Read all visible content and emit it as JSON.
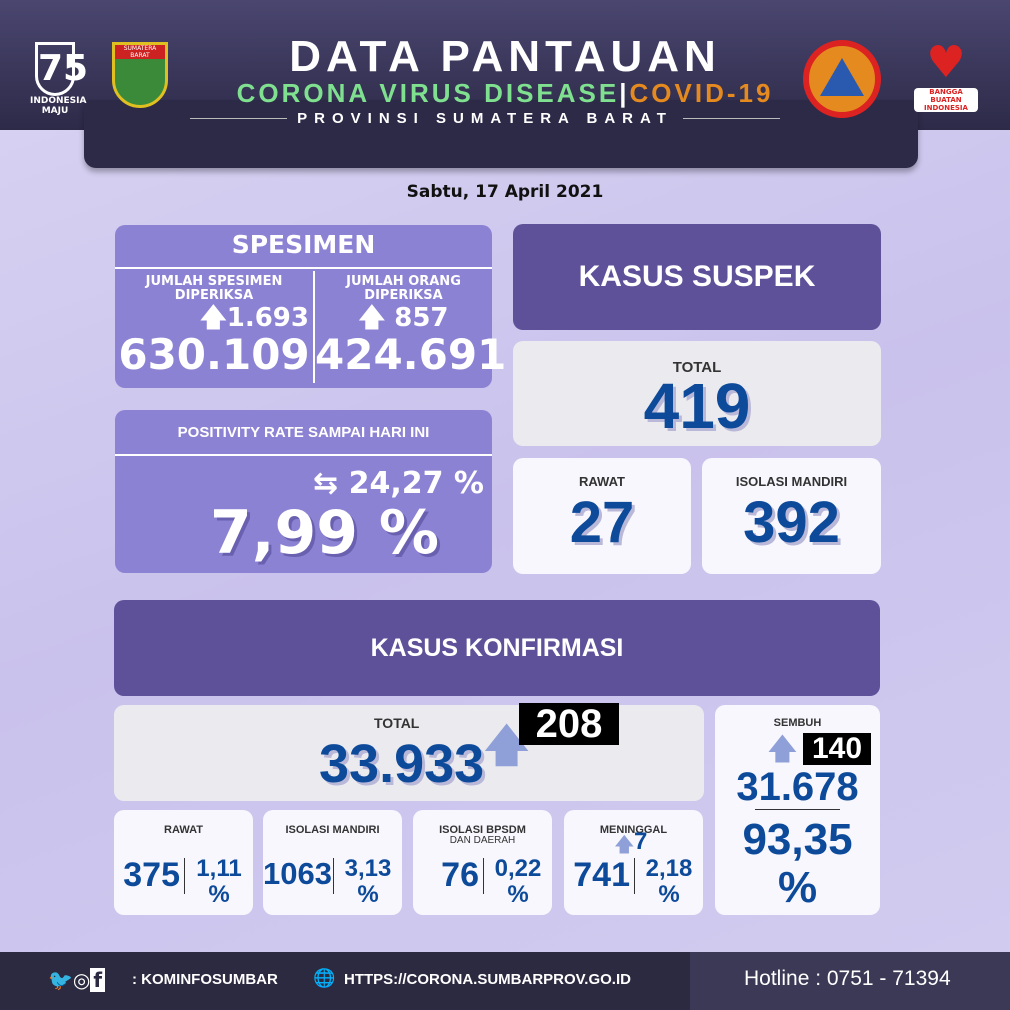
{
  "header": {
    "title": "DATA PANTAUAN",
    "subtitle_green": "CORONA VIRUS DISEASE",
    "separator": "|",
    "subtitle_orange": "COVID-19",
    "province": "PROVINSI SUMATERA BARAT",
    "logos": {
      "left1": "INDONESIA MAJU",
      "left2": "SUMATERA BARAT",
      "right1": "BPBD SUMATERA BARAT",
      "right2": "BANGGA BUATAN INDONESIA"
    }
  },
  "date": "Sabtu, 17 April 2021",
  "spesimen": {
    "title": "SPESIMEN",
    "left": {
      "label": "JUMLAH SPESIMEN DIPERIKSA",
      "increase": "1.693",
      "value": "630.109"
    },
    "right": {
      "label": "JUMLAH ORANG DIPERIKSA",
      "increase": "857",
      "value": "424.691"
    }
  },
  "positivity": {
    "label": "POSITIVITY RATE SAMPAI HARI INI",
    "change": "24,27 %",
    "value": "7,99 %"
  },
  "suspek": {
    "title": "KASUS SUSPEK",
    "total_label": "TOTAL",
    "total": "419",
    "rawat_label": "RAWAT",
    "rawat": "27",
    "isolasi_label": "ISOLASI MANDIRI",
    "isolasi": "392"
  },
  "konfirmasi": {
    "title": "KASUS KONFIRMASI",
    "total_label": "TOTAL",
    "total": "33.933",
    "increase": "208",
    "sembuh": {
      "label": "SEMBUH",
      "increase": "140",
      "value": "31.678",
      "pct": "93,35",
      "pct_sign": "%"
    },
    "items": [
      {
        "label": "RAWAT",
        "sub": "",
        "value": "375",
        "pct": "1,11",
        "sign": "%"
      },
      {
        "label": "ISOLASI MANDIRI",
        "sub": "",
        "value": "1063",
        "pct": "3,13",
        "sign": "%"
      },
      {
        "label": "ISOLASI BPSDM",
        "sub": "DAN DAERAH",
        "value": "76",
        "pct": "0,22",
        "sign": "%"
      },
      {
        "label": "MENINGGAL",
        "sub": "",
        "increase": "7",
        "value": "741",
        "pct": "2,18",
        "sign": "%"
      }
    ]
  },
  "footer": {
    "social": ": KOMINFOSUMBAR",
    "url": "HTTPS://CORONA.SUMBARPROV.GO.ID",
    "hotline": "Hotline : 0751 - 71394"
  },
  "colors": {
    "number_blue": "#0d4a9a",
    "header_navy": "#2d2a48",
    "green": "#7fe08f",
    "orange": "#e58a1f",
    "purple": "#8c82d4"
  }
}
